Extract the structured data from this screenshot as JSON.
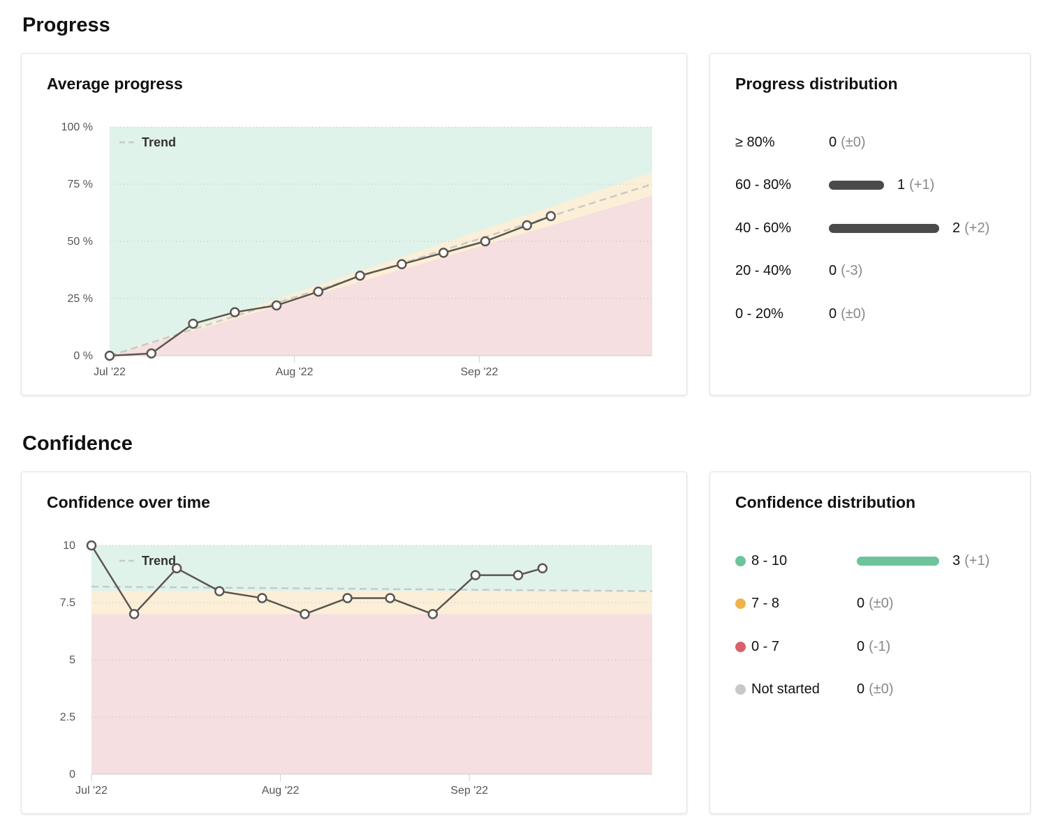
{
  "sections": {
    "progress": "Progress",
    "confidence": "Confidence"
  },
  "progress_card": {
    "title": "Average progress"
  },
  "progress_distribution": {
    "title": "Progress distribution",
    "bar_color": "#4a4a4a",
    "rows": [
      {
        "label": "≥ 80%",
        "count": 0,
        "count_text": "0",
        "change": "(±0)"
      },
      {
        "label": "60 - 80%",
        "count": 1,
        "count_text": "1",
        "change": "(+1)"
      },
      {
        "label": "40 - 60%",
        "count": 2,
        "count_text": "2",
        "change": "(+2)"
      },
      {
        "label": "20 - 40%",
        "count": 0,
        "count_text": "0",
        "change": "(-3)"
      },
      {
        "label": "0 - 20%",
        "count": 0,
        "count_text": "0",
        "change": "(±0)"
      }
    ]
  },
  "confidence_card": {
    "title": "Confidence over time"
  },
  "confidence_distribution": {
    "title": "Confidence distribution",
    "rows": [
      {
        "label": "8 - 10",
        "color": "#6cc39c",
        "count": 3,
        "count_text": "3",
        "change": "(+1)"
      },
      {
        "label": "7 - 8",
        "color": "#f0b34a",
        "count": 0,
        "count_text": "0",
        "change": "(±0)"
      },
      {
        "label": "0 - 7",
        "color": "#d9606a",
        "count": 0,
        "count_text": "0",
        "change": "(-1)"
      },
      {
        "label": "Not started",
        "color": "#c8c8c8",
        "count": 0,
        "count_text": "0",
        "change": "(±0)"
      }
    ]
  },
  "colors": {
    "good_zone": "#e0f3ea",
    "warn_zone": "#fcefd8",
    "bad_zone": "#f5dfe0",
    "line": "#5a5550",
    "trend": "#c9c9c4"
  },
  "chart_data": [
    {
      "type": "line",
      "title": "Average progress",
      "legend": [
        "Trend"
      ],
      "legend_position": "top-left",
      "x_ticks": [
        "Jul '22",
        "Aug '22",
        "Sep '22"
      ],
      "x_tick_dates": [
        "2022-07-01",
        "2022-08-01",
        "2022-09-01"
      ],
      "x_range": [
        "2022-07-01",
        "2022-09-30"
      ],
      "y_ticks": [
        "0 %",
        "25 %",
        "50 %",
        "75 %",
        "100 %"
      ],
      "y_tick_values": [
        0,
        25,
        50,
        75,
        100
      ],
      "ylim": [
        0,
        100
      ],
      "grid": true,
      "series": [
        {
          "values": [
            {
              "x": "2022-07-01",
              "y": 0
            },
            {
              "x": "2022-07-08",
              "y": 1
            },
            {
              "x": "2022-07-15",
              "y": 14
            },
            {
              "x": "2022-07-22",
              "y": 19
            },
            {
              "x": "2022-07-29",
              "y": 22
            },
            {
              "x": "2022-08-05",
              "y": 28
            },
            {
              "x": "2022-08-12",
              "y": 35
            },
            {
              "x": "2022-08-19",
              "y": 40
            },
            {
              "x": "2022-08-26",
              "y": 45
            },
            {
              "x": "2022-09-02",
              "y": 50
            },
            {
              "x": "2022-09-09",
              "y": 57
            },
            {
              "x": "2022-09-13",
              "y": 61
            }
          ]
        }
      ],
      "trend": [
        {
          "x": "2022-07-01",
          "y": 0
        },
        {
          "x": "2022-09-30",
          "y": 75
        }
      ],
      "zones": {
        "bad_upper": [
          {
            "x": "2022-07-01",
            "y": 0
          },
          {
            "x": "2022-09-30",
            "y": 70
          }
        ],
        "warn_upper": [
          {
            "x": "2022-07-01",
            "y": 0
          },
          {
            "x": "2022-09-30",
            "y": 80
          }
        ]
      }
    },
    {
      "type": "line",
      "title": "Confidence over time",
      "legend": [
        "Trend"
      ],
      "legend_position": "top-left",
      "x_ticks": [
        "Jul '22",
        "Aug '22",
        "Sep '22"
      ],
      "x_tick_dates": [
        "2022-07-01",
        "2022-08-01",
        "2022-09-01"
      ],
      "x_range": [
        "2022-07-01",
        "2022-10-01"
      ],
      "y_ticks": [
        "0",
        "2.5",
        "5",
        "7.5",
        "10"
      ],
      "y_tick_values": [
        0,
        2.5,
        5,
        7.5,
        10
      ],
      "ylim": [
        0,
        10
      ],
      "grid": true,
      "series": [
        {
          "values": [
            {
              "x": "2022-07-01",
              "y": 10
            },
            {
              "x": "2022-07-08",
              "y": 7
            },
            {
              "x": "2022-07-15",
              "y": 9
            },
            {
              "x": "2022-07-22",
              "y": 8
            },
            {
              "x": "2022-07-29",
              "y": 7.7
            },
            {
              "x": "2022-08-05",
              "y": 7
            },
            {
              "x": "2022-08-12",
              "y": 7.7
            },
            {
              "x": "2022-08-19",
              "y": 7.7
            },
            {
              "x": "2022-08-26",
              "y": 7
            },
            {
              "x": "2022-09-02",
              "y": 8.7
            },
            {
              "x": "2022-09-09",
              "y": 8.7
            },
            {
              "x": "2022-09-13",
              "y": 9
            }
          ]
        }
      ],
      "trend": [
        {
          "x": "2022-07-01",
          "y": 8.2
        },
        {
          "x": "2022-10-01",
          "y": 8
        }
      ],
      "zones": {
        "bad_upper_value": 7,
        "warn_upper_value": 8
      }
    }
  ]
}
